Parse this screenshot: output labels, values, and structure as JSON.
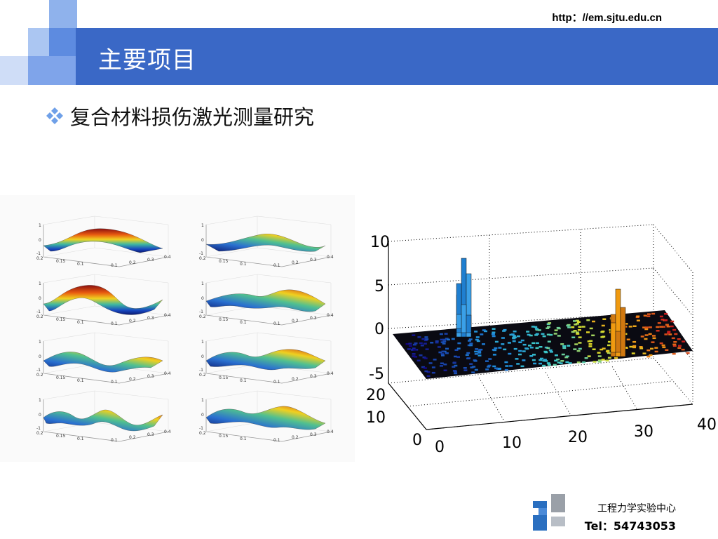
{
  "slide": {
    "url": "http：//em.sjtu.edu.cn",
    "title": "主要项目",
    "bullet": "复合材料损伤激光测量研究"
  },
  "left_figure": {
    "y_ticks": [
      "1",
      "0",
      "-1"
    ],
    "x_ticks_left": [
      "0.2",
      "0.15",
      "0.1"
    ],
    "x_ticks_right": [
      "0.1",
      "0.2",
      "0.3",
      "0.4"
    ]
  },
  "chart_data": {
    "type": "bar",
    "x_ticks": [
      "0",
      "10",
      "20",
      "30",
      "40"
    ],
    "y_ticks": [
      "0",
      "10",
      "20"
    ],
    "z_ticks": [
      "10",
      "5",
      "0",
      "-5"
    ],
    "zlim": [
      -5,
      10
    ]
  },
  "footer": {
    "org": "工程力学实验中心",
    "tel": "Tel：54743053"
  },
  "colors": {
    "header_blue": "#3A68C6",
    "accent_light": "#8FB2EC",
    "accent_mid": "#5D8BE0"
  }
}
